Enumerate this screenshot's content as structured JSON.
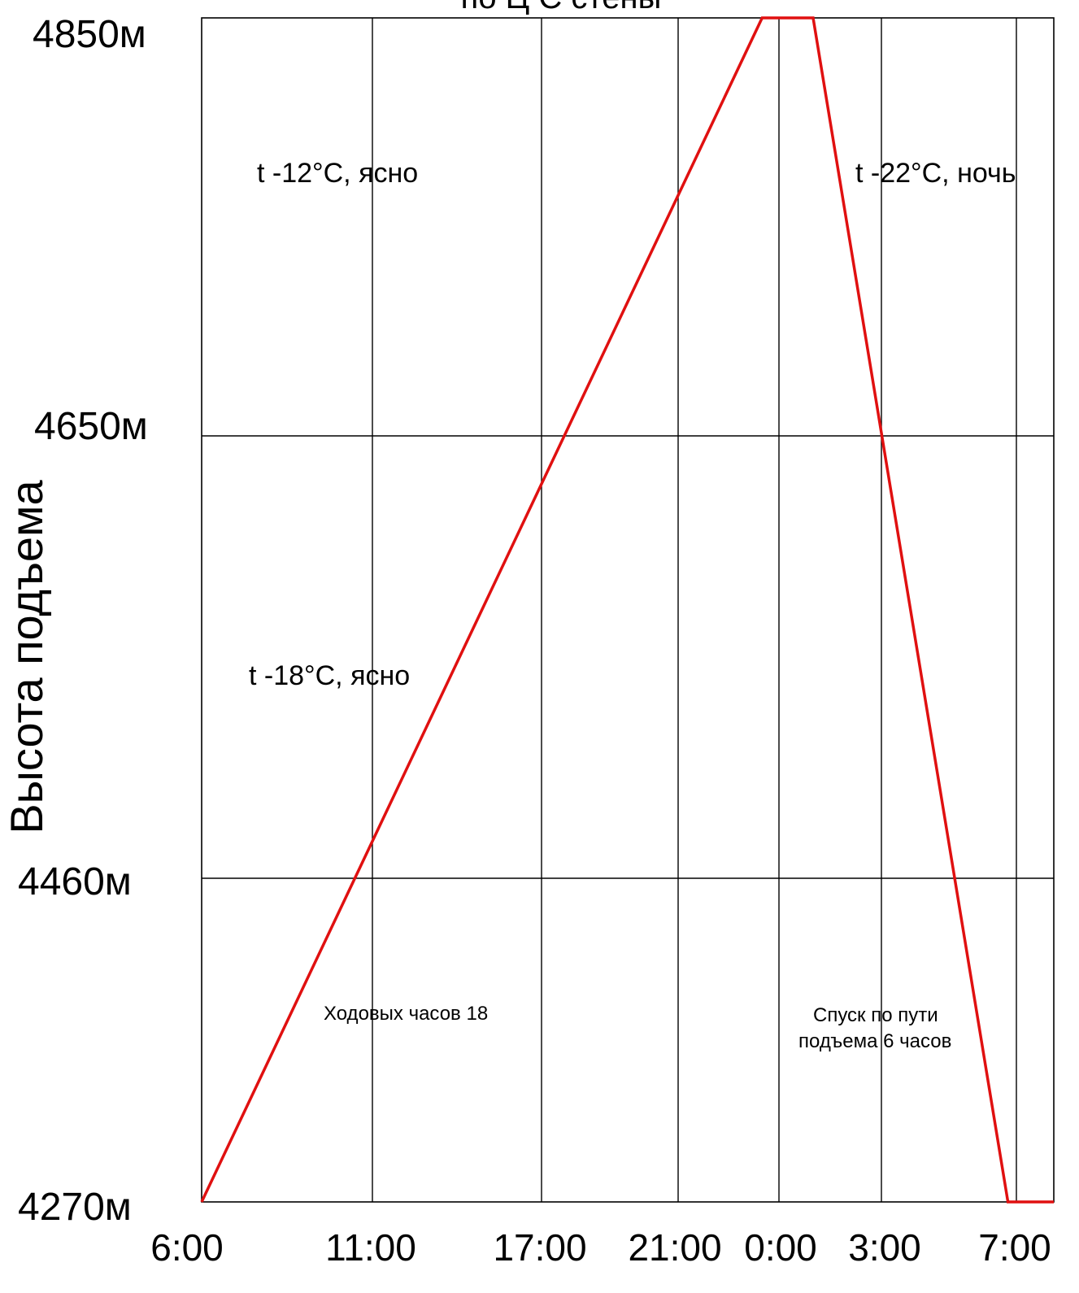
{
  "chart_data": {
    "type": "line",
    "title": "по Ц С стены",
    "xlabel": "",
    "ylabel": "Высота подъема",
    "x_ticks": [
      "6:00",
      "11:00",
      "17:00",
      "21:00",
      "0:00",
      "3:00",
      "7:00"
    ],
    "y_ticks": [
      "4270м",
      "4460м",
      "4650м",
      "4850м"
    ],
    "y_tick_values": [
      4270,
      4460,
      4650,
      4850
    ],
    "ylim": [
      4270,
      4850
    ],
    "grid": true,
    "series_color": "#e01010",
    "series": [
      {
        "points": [
          {
            "x": "6:00",
            "y": 4270
          },
          {
            "x": "23:30",
            "y": 4850
          },
          {
            "x": "1:00",
            "y": 4850
          },
          {
            "x": "6:45",
            "y": 4270
          },
          {
            "x": "7:00",
            "y": 4270
          }
        ]
      }
    ],
    "annotations": [
      {
        "text": "t -12°C, ясно"
      },
      {
        "text": "t -22°C, ночь"
      },
      {
        "text": "t -18°C, ясно"
      },
      {
        "text": "Ходовых часов 18"
      },
      {
        "text": "Спуск по пути"
      },
      {
        "text": "подъема 6 часов"
      }
    ]
  }
}
